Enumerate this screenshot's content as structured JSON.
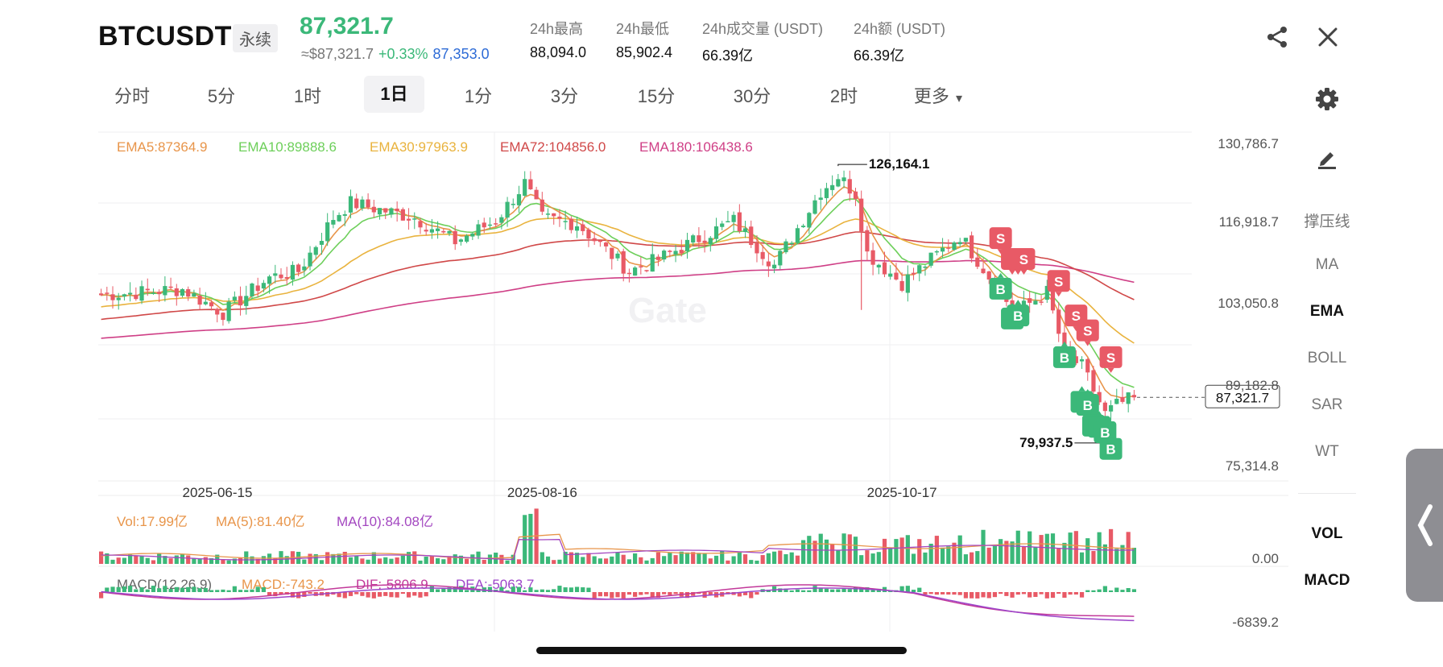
{
  "header": {
    "symbol": "BTCUSDT",
    "contract_type": "永续",
    "last_price": "87,321.7",
    "usd_price": "≈$87,321.7",
    "change_pct": "+0.33%",
    "mark_price": "87,353.0",
    "stats": [
      {
        "label": "24h最高",
        "value": "88,094.0"
      },
      {
        "label": "24h最低",
        "value": "85,902.4"
      },
      {
        "label": "24h成交量 (USDT)",
        "value": "66.39亿"
      },
      {
        "label": "24h额 (USDT)",
        "value": "66.39亿"
      }
    ],
    "share_icon": "share-icon",
    "close_icon": "close-icon"
  },
  "timeframes": [
    "分时",
    "5分",
    "1时",
    "1日",
    "1分",
    "3分",
    "15分",
    "30分",
    "2时",
    "更多"
  ],
  "active_timeframe": "1日",
  "more_arrow": "▾",
  "sidebar": {
    "top_icons": [
      "gear-icon",
      "pen-icon"
    ],
    "items": [
      "撑压线",
      "MA",
      "EMA",
      "BOLL",
      "SAR",
      "WT"
    ],
    "active_item": "EMA",
    "lower_items": [
      "VOL",
      "MACD"
    ]
  },
  "colors": {
    "up": "#3bb879",
    "down": "#e85a66",
    "ema5": "#e8954a",
    "ema10": "#6dcf5a",
    "ema30": "#e9b33e",
    "ema72": "#d04848",
    "ema180": "#cf3f86",
    "ma10_vol": "#a347c0",
    "dif": "#c2399a",
    "dea": "#9d45c9"
  },
  "chart_data": [
    {
      "type": "candlestick",
      "x_labels": [
        "2025-06-15",
        "2025-08-16",
        "2025-10-17"
      ],
      "y_ticks": [
        "130,786.7",
        "116,918.7",
        "103,050.8",
        "89,182.8",
        "75,314.8"
      ],
      "ylim": [
        75314.8,
        130786.7
      ],
      "last_price_label": "87,321.7",
      "high_marker": {
        "label": "126,164.1",
        "value": 126164.1,
        "date": "2025-10-06"
      },
      "low_marker": {
        "label": "79,937.5",
        "value": 79937.5,
        "date": "2025-11-21"
      },
      "indicators": [
        {
          "name": "EMA5",
          "label": "EMA5:87364.9",
          "last": 87364.9
        },
        {
          "name": "EMA10",
          "label": "EMA10:89888.6",
          "last": 89888.6
        },
        {
          "name": "EMA30",
          "label": "EMA30:97963.9",
          "last": 97963.9
        },
        {
          "name": "EMA72",
          "label": "EMA72:104856.0",
          "last": 104856.0
        },
        {
          "name": "EMA180",
          "label": "EMA180:106438.6",
          "last": 106438.6
        }
      ],
      "close_path": [
        [
          "2025-06-01",
          104500
        ],
        [
          "2025-06-15",
          105500
        ],
        [
          "2025-06-22",
          101500
        ],
        [
          "2025-06-30",
          107500
        ],
        [
          "2025-07-05",
          108500
        ],
        [
          "2025-07-11",
          117500
        ],
        [
          "2025-07-14",
          120000
        ],
        [
          "2025-07-25",
          117500
        ],
        [
          "2025-08-01",
          113500
        ],
        [
          "2025-08-08",
          117000
        ],
        [
          "2025-08-13",
          123300
        ],
        [
          "2025-08-16",
          117400
        ],
        [
          "2025-08-22",
          116500
        ],
        [
          "2025-08-31",
          108500
        ],
        [
          "2025-09-05",
          110500
        ],
        [
          "2025-09-18",
          117000
        ],
        [
          "2025-09-25",
          109500
        ],
        [
          "2025-10-03",
          122000
        ],
        [
          "2025-10-06",
          124500
        ],
        [
          "2025-10-09",
          121500
        ],
        [
          "2025-10-11",
          111500
        ],
        [
          "2025-10-17",
          106500
        ],
        [
          "2025-10-27",
          114500
        ],
        [
          "2025-11-04",
          103500
        ],
        [
          "2025-11-07",
          102500
        ],
        [
          "2025-11-11",
          105000
        ],
        [
          "2025-11-14",
          94500
        ],
        [
          "2025-11-17",
          92500
        ],
        [
          "2025-11-21",
          84500
        ],
        [
          "2025-11-23",
          86000
        ],
        [
          "2025-11-26",
          87321.7
        ]
      ],
      "signals": [
        {
          "type": "S",
          "date": "2025-11-03",
          "value": 114000
        },
        {
          "type": "S",
          "date": "2025-11-05",
          "value": 110500
        },
        {
          "type": "S",
          "date": "2025-11-06",
          "value": 110500
        },
        {
          "type": "S",
          "date": "2025-11-07",
          "value": 110500
        },
        {
          "type": "S",
          "date": "2025-11-13",
          "value": 106800
        },
        {
          "type": "S",
          "date": "2025-11-16",
          "value": 101000
        },
        {
          "type": "S",
          "date": "2025-11-18",
          "value": 98500
        },
        {
          "type": "S",
          "date": "2025-11-22",
          "value": 94000
        },
        {
          "type": "B",
          "date": "2025-11-03",
          "value": 105500
        },
        {
          "type": "B",
          "date": "2025-11-05",
          "value": 100500
        },
        {
          "type": "B",
          "date": "2025-11-06",
          "value": 101000
        },
        {
          "type": "B",
          "date": "2025-11-14",
          "value": 94000
        },
        {
          "type": "B",
          "date": "2025-11-17",
          "value": 86500
        },
        {
          "type": "B",
          "date": "2025-11-18",
          "value": 86000
        },
        {
          "type": "B",
          "date": "2025-11-19",
          "value": 82500
        },
        {
          "type": "B",
          "date": "2025-11-20",
          "value": 82300
        },
        {
          "type": "B",
          "date": "2025-11-21",
          "value": 81400
        },
        {
          "type": "B",
          "date": "2025-11-22",
          "value": 78600
        }
      ]
    },
    {
      "type": "bar",
      "indicators": [
        {
          "name": "Vol",
          "label": "Vol:17.99亿"
        },
        {
          "name": "MA(5)",
          "label": "MA(5):81.40亿"
        },
        {
          "name": "MA(10)",
          "label": "MA(10):84.08亿"
        }
      ],
      "y_ticks": [
        "0.00"
      ]
    },
    {
      "type": "bar",
      "indicators": [
        {
          "name": "MACD",
          "label": "MACD(12,26,9)"
        },
        {
          "name": "MACD",
          "label": "MACD:-743.2"
        },
        {
          "name": "DIF",
          "label": "DIF:-5806.9"
        },
        {
          "name": "DEA",
          "label": "DEA:-5063.7"
        }
      ],
      "y_ticks": [
        "-6839.2"
      ]
    }
  ]
}
